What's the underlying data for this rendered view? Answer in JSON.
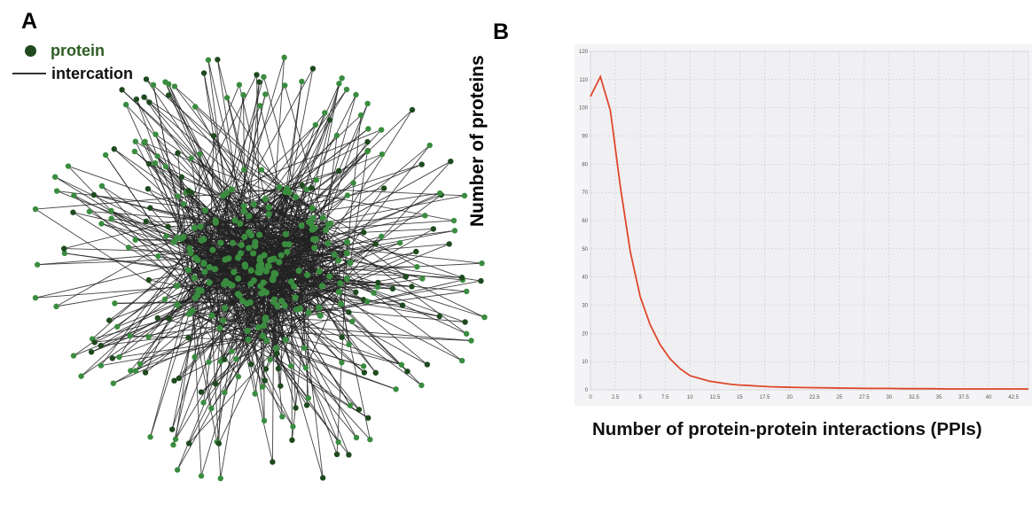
{
  "panels": {
    "a_label": "A",
    "b_label": "B"
  },
  "network": {
    "legend": {
      "node_label": "protein",
      "edge_label": "intercation"
    },
    "colors": {
      "node_fill": "#3a8c3f",
      "node_edge_fill": "#1f4a1f",
      "edge": "#222222"
    }
  },
  "chart_data": {
    "type": "line",
    "xlabel": "Number of protein-protein interactions (PPIs)",
    "ylabel": "Number of proteins",
    "xlim": [
      0,
      44
    ],
    "ylim": [
      0,
      120
    ],
    "x_ticks": [
      "0",
      "2.5",
      "5",
      "7.5",
      "10",
      "12.5",
      "15",
      "17.5",
      "20",
      "22.5",
      "25",
      "27.5",
      "30",
      "32.5",
      "35",
      "37.5",
      "40",
      "42.5"
    ],
    "y_ticks": [
      "0",
      "10",
      "20",
      "30",
      "40",
      "50",
      "60",
      "70",
      "80",
      "90",
      "100",
      "110",
      "120"
    ],
    "grid": true,
    "line_color": "#e0462a",
    "series": [
      {
        "x": [
          0,
          1,
          2,
          3,
          4,
          5,
          6,
          7,
          8,
          9,
          10,
          11,
          12,
          13,
          14,
          15,
          16,
          17,
          18,
          19,
          20,
          22,
          24,
          26,
          28,
          30,
          32,
          34,
          36,
          38,
          40,
          42,
          44
        ],
        "values": [
          104,
          111,
          99,
          72,
          49,
          33,
          23,
          16,
          11,
          7.5,
          5,
          4,
          3,
          2.5,
          2,
          1.7,
          1.5,
          1.3,
          1.1,
          1,
          0.9,
          0.8,
          0.7,
          0.6,
          0.5,
          0.5,
          0.4,
          0.4,
          0.3,
          0.3,
          0.3,
          0.3,
          0.3
        ]
      }
    ]
  }
}
